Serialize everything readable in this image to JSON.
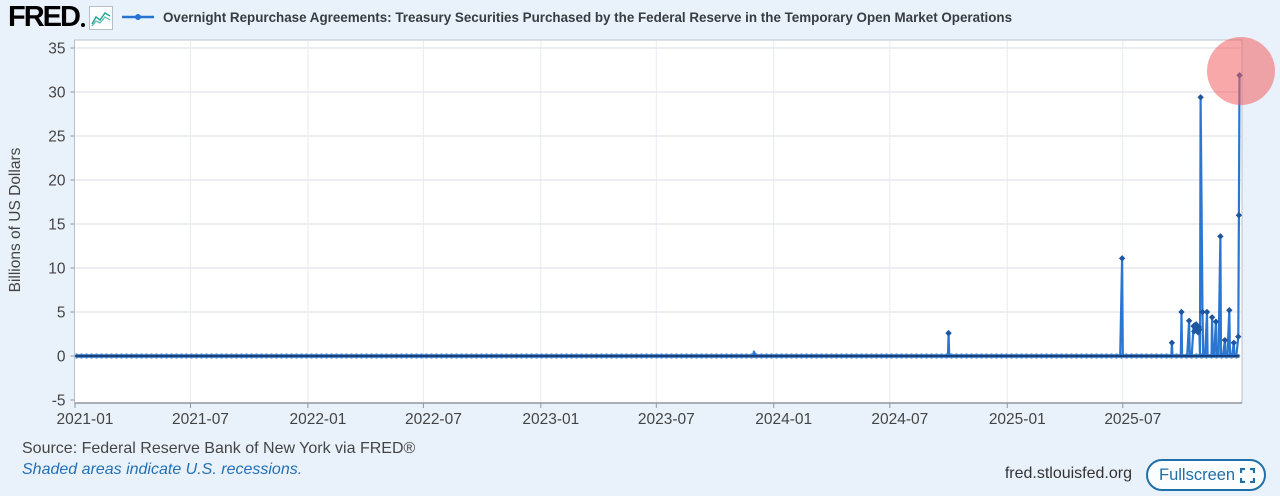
{
  "header": {
    "logo_text": "FRED",
    "logo_icon": "fred-sparkline-icon",
    "legend_marker": "line-with-dot-marker",
    "series_title": "Overnight Repurchase Agreements: Treasury Securities Purchased by the Federal Reserve in the Temporary Open Market Operations"
  },
  "colors": {
    "background": "#e9f2fb",
    "plot_background": "#ffffff",
    "series_line": "#2b76d2",
    "series_line_dark": "#17407e",
    "series_marker": "#1e56a0",
    "baseline_fringe": "#8fb9e4",
    "gridline": "#dadee4",
    "axis_line": "#8f969e",
    "plot_border": "#bac0c9",
    "tick_text": "#444444",
    "highlight_circle": "rgba(242,96,96,0.55)",
    "fred_blue": "#1f6fa8",
    "logo_icon_teal": "#26a69a"
  },
  "chart_data": {
    "type": "line",
    "title": "Overnight Repurchase Agreements: Treasury Securities Purchased by the Federal Reserve in the Temporary Open Market Operations",
    "xlabel": "",
    "ylabel": "Billions of US Dollars",
    "ylim": [
      -5,
      35
    ],
    "y_ticks": [
      -5,
      0,
      5,
      10,
      15,
      20,
      25,
      30,
      35
    ],
    "x_ticks": [
      "2021-01",
      "2021-07",
      "2022-01",
      "2022-07",
      "2023-01",
      "2023-07",
      "2024-01",
      "2024-07",
      "2025-01",
      "2025-07"
    ],
    "x_domain": [
      "2021-01-01",
      "2025-12-31"
    ],
    "grid": true,
    "frequency": "daily (business days)",
    "baseline_value": 0,
    "baseline_note": "Series is approximately 0 on all business days except the spike dates listed below",
    "spikes": [
      {
        "date": "2023-12-01",
        "value": 0.5
      },
      {
        "date": "2024-10-01",
        "value": 2.6
      },
      {
        "date": "2025-06-30",
        "value": 11.1
      },
      {
        "date": "2025-09-16",
        "value": 1.5
      },
      {
        "date": "2025-10-01",
        "value": 5.0
      },
      {
        "date": "2025-10-13",
        "value": 4.0
      },
      {
        "date": "2025-10-20",
        "value": 3.4
      },
      {
        "date": "2025-10-21",
        "value": 2.8
      },
      {
        "date": "2025-10-22",
        "value": 3.5
      },
      {
        "date": "2025-10-23",
        "value": 3.1
      },
      {
        "date": "2025-10-24",
        "value": 3.6
      },
      {
        "date": "2025-10-27",
        "value": 2.7
      },
      {
        "date": "2025-10-28",
        "value": 3.3
      },
      {
        "date": "2025-10-29",
        "value": 3.0
      },
      {
        "date": "2025-10-31",
        "value": 29.4
      },
      {
        "date": "2025-11-03",
        "value": 5.0
      },
      {
        "date": "2025-11-10",
        "value": 5.0
      },
      {
        "date": "2025-11-18",
        "value": 4.4
      },
      {
        "date": "2025-11-24",
        "value": 3.9
      },
      {
        "date": "2025-12-01",
        "value": 13.6
      },
      {
        "date": "2025-12-08",
        "value": 1.8
      },
      {
        "date": "2025-12-15",
        "value": 5.2
      },
      {
        "date": "2025-12-22",
        "value": 1.5
      },
      {
        "date": "2025-12-29",
        "value": 2.2
      },
      {
        "date": "2025-12-30",
        "value": 16.0
      },
      {
        "date": "2025-12-31",
        "value": 31.9
      }
    ],
    "last_point": {
      "date": "2025-12-31",
      "value": 31.9,
      "highlighted": true
    },
    "legend_position": "top"
  },
  "footer": {
    "source": "Source: Federal Reserve Bank of New York via FRED®",
    "note": "Shaded areas indicate U.S. recessions.",
    "site": "fred.stlouisfed.org",
    "fullscreen_label": "Fullscreen",
    "fullscreen_icon": "expand-corners-icon"
  }
}
